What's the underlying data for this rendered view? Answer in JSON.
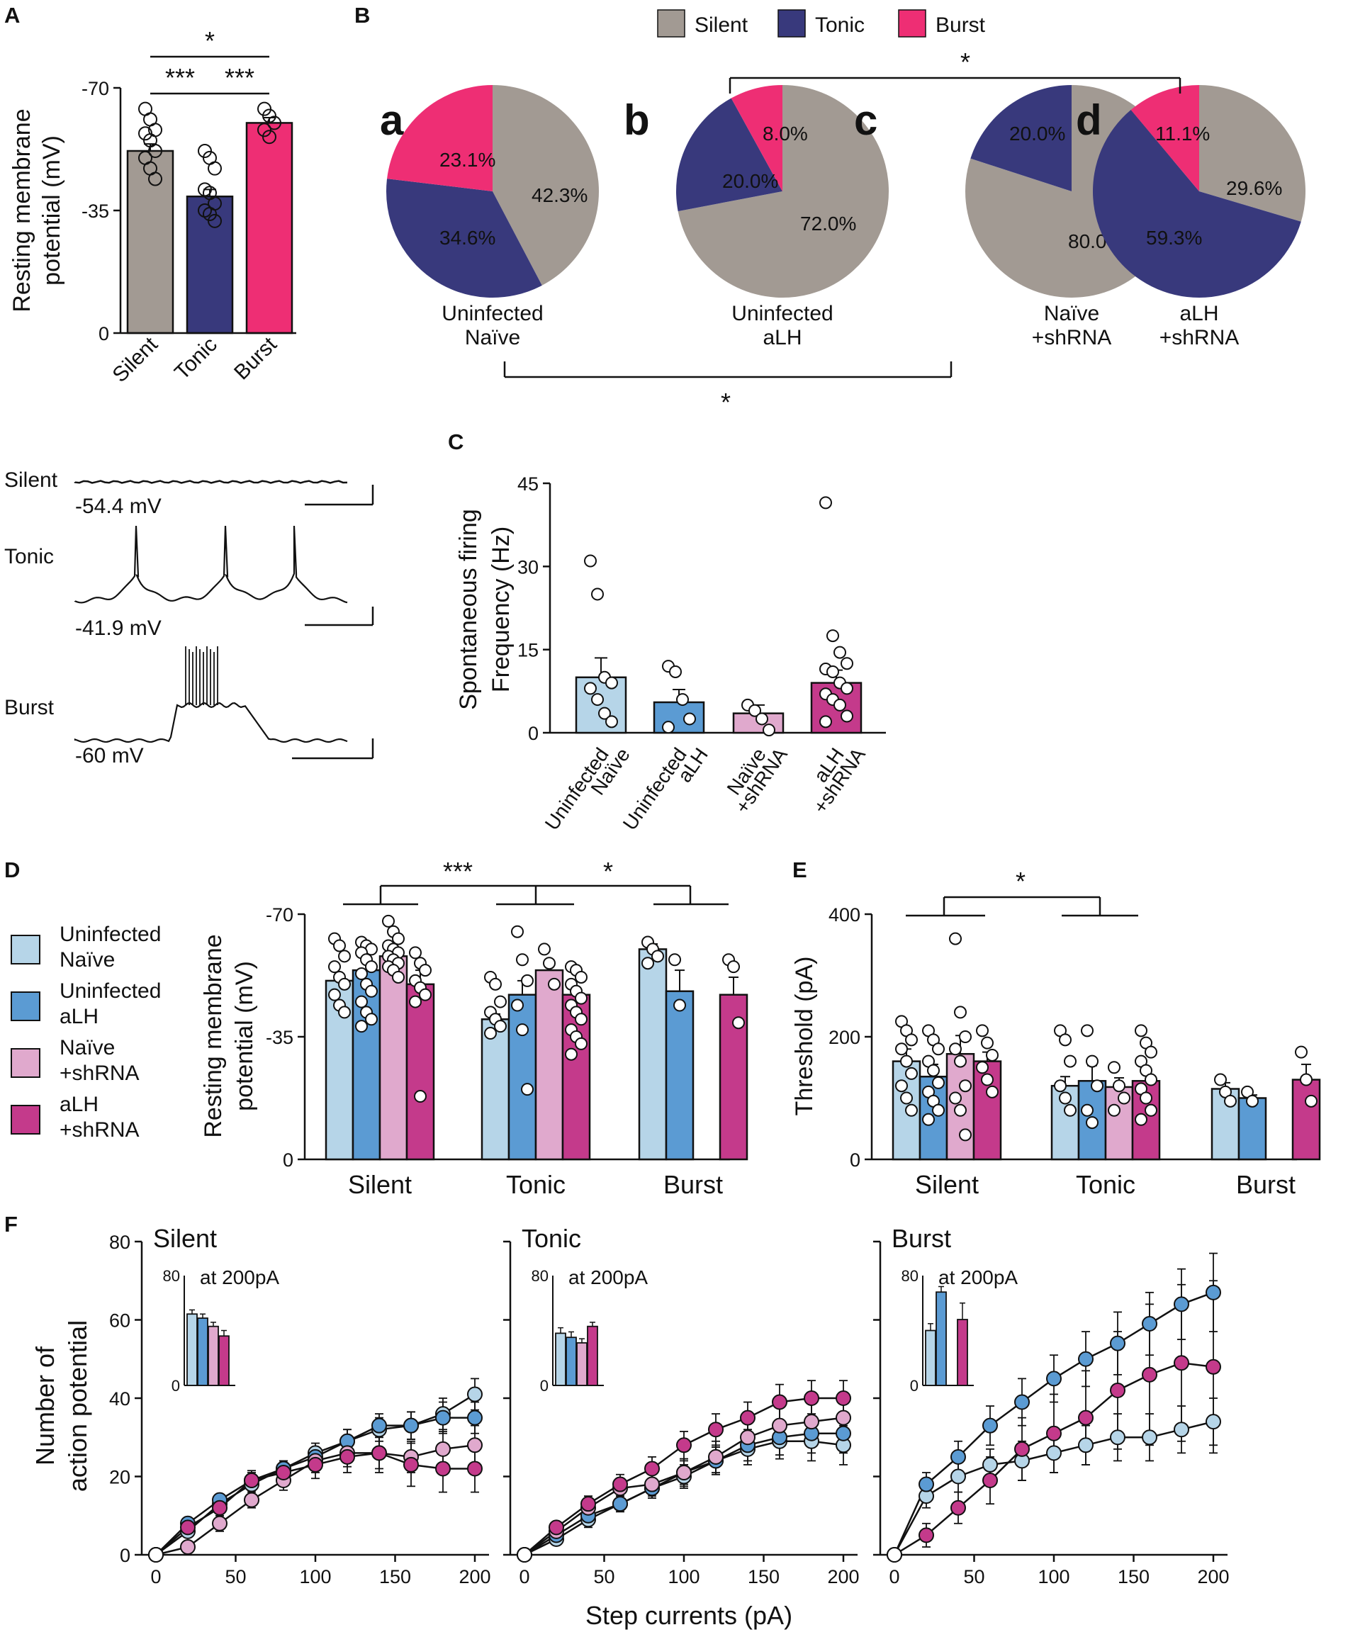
{
  "colors": {
    "silent": "#a29a93",
    "tonic": "#38397c",
    "burst": "#ee2e74",
    "uninfected_naive": "#b6d5e8",
    "uninfected_alh": "#5b9bd3",
    "naive_shrna": "#e0a9cd",
    "alh_shrna": "#c43a8b"
  },
  "legend_top": [
    "Silent",
    "Tonic",
    "Burst"
  ],
  "legend_groups": [
    "Uninfected\nNaïve",
    "Uninfected\naLH",
    "Naïve\n+shRNA",
    "aLH\n+shRNA"
  ],
  "panel_letters": [
    "A",
    "B",
    "C",
    "D",
    "E",
    "F"
  ],
  "traces": {
    "labels": [
      "Silent",
      "Tonic",
      "Burst"
    ],
    "potentials": [
      "-54.4 mV",
      "-41.9 mV",
      "-60 mV"
    ]
  },
  "chart_data": [
    {
      "id": "A",
      "type": "bar",
      "title": "",
      "ylabel": "Resting membrane\npotential (mV)",
      "categories": [
        "Silent",
        "Tonic",
        "Burst"
      ],
      "values": [
        -52,
        -39,
        -60
      ],
      "errors": [
        2,
        2,
        1.5
      ],
      "ylim": [
        0,
        -70
      ],
      "yticks": [
        "-70",
        "-35",
        "0"
      ],
      "points": [
        [
          -64,
          -61,
          -58,
          -57,
          -55,
          -52,
          -50,
          -47,
          -44
        ],
        [
          -52,
          -50,
          -47,
          -41,
          -40,
          -37,
          -35,
          -34,
          -32
        ],
        [
          -64,
          -62,
          -60,
          -58,
          -56
        ]
      ],
      "significance": [
        "*",
        "***",
        "***"
      ]
    },
    {
      "id": "B",
      "type": "pie",
      "panels": [
        {
          "letter": "a",
          "label": "Uninfected\nNaïve",
          "silent": 42.3,
          "tonic": 34.6,
          "burst": 23.1,
          "labels": [
            "42.3%",
            "34.6%",
            "23.1%"
          ]
        },
        {
          "letter": "b",
          "label": "Uninfected\naLH",
          "silent": 72.0,
          "tonic": 20.0,
          "burst": 8.0,
          "labels": [
            "72.0%",
            "20.0%",
            "8.0%"
          ]
        },
        {
          "letter": "c",
          "label": "Naïve\n+shRNA",
          "silent": 80.0,
          "tonic": 20.0,
          "burst": 0,
          "labels": [
            "80.0%",
            "20.0%",
            ""
          ]
        },
        {
          "letter": "d",
          "label": "aLH\n+shRNA",
          "silent": 29.6,
          "tonic": 59.3,
          "burst": 11.1,
          "labels": [
            "29.6%",
            "59.3%",
            "11.1%"
          ]
        }
      ],
      "significance": [
        "*",
        "*"
      ]
    },
    {
      "id": "C",
      "type": "bar",
      "ylabel": "Spontaneous firing\nFrequency (Hz)",
      "categories": [
        "Uninfected\nNaïve",
        "Uninfected\naLH",
        "Naïve\n+shRNA",
        "aLH\n+shRNA"
      ],
      "values": [
        10,
        5.5,
        3.5,
        9
      ],
      "errors": [
        3.5,
        2.3,
        1.5,
        2.3
      ],
      "ylim": [
        0,
        45
      ],
      "yticks": [
        "0",
        "15",
        "30",
        "45"
      ],
      "points": [
        [
          31,
          25,
          10,
          9,
          8,
          6,
          3.5,
          2
        ],
        [
          12,
          11,
          6,
          2.5,
          1
        ],
        [
          5,
          4,
          2.5,
          0.5
        ],
        [
          41.5,
          17.5,
          14.5,
          12.5,
          11.5,
          11,
          9,
          8,
          7,
          6,
          5,
          3,
          2
        ]
      ]
    },
    {
      "id": "D",
      "type": "bar",
      "ylabel": "Resting membrane\npotential (mV)",
      "categories": [
        "Silent",
        "Tonic",
        "Burst"
      ],
      "series": [
        {
          "name": "Uninfected Naïve",
          "values": [
            -51,
            -40,
            -60
          ],
          "errors": [
            2,
            1.5,
            1.5
          ]
        },
        {
          "name": "Uninfected aLH",
          "values": [
            -54,
            -47,
            -48
          ],
          "errors": [
            2,
            4,
            6
          ]
        },
        {
          "name": "Naïve +shRNA",
          "values": [
            -58,
            -54,
            null
          ],
          "errors": [
            1.5,
            3,
            null
          ]
        },
        {
          "name": "aLH +shRNA",
          "values": [
            -50,
            -47,
            -47
          ],
          "errors": [
            4,
            2,
            5
          ]
        }
      ],
      "points": [
        [
          [
            -63,
            -61,
            -58,
            -55,
            -52,
            -50,
            -47,
            -44,
            -42
          ],
          [
            -52,
            -50,
            -45,
            -42,
            -40,
            -38,
            -36
          ],
          [
            -62,
            -60,
            -58,
            -56
          ]
        ],
        [
          [
            -62,
            -61,
            -60,
            -59,
            -57,
            -55,
            -53,
            -50,
            -48,
            -45,
            -42,
            -40,
            -38
          ],
          [
            -65,
            -57,
            -51,
            -44,
            -37,
            -20
          ],
          [
            -57,
            -44
          ]
        ],
        [
          [
            -68,
            -65,
            -63,
            -61,
            -60,
            -59,
            -58,
            -57,
            -56,
            -55,
            -54,
            -52
          ],
          [
            -60,
            -56,
            -50
          ],
          []
        ],
        [
          [
            -59,
            -56,
            -54,
            -51,
            -49,
            -47,
            -45,
            -18
          ],
          [
            -55,
            -54,
            -52,
            -50,
            -48,
            -46,
            -44,
            -42,
            -40,
            -37,
            -35,
            -33,
            -30
          ],
          [
            -57,
            -55,
            -39
          ]
        ]
      ],
      "ylim": [
        0,
        -70
      ],
      "yticks": [
        "-70",
        "-35",
        "0"
      ],
      "significance": [
        "***",
        "*"
      ]
    },
    {
      "id": "E",
      "type": "bar",
      "ylabel": "Threshold (pA)",
      "categories": [
        "Silent",
        "Tonic",
        "Burst"
      ],
      "series": [
        {
          "name": "Uninfected Naïve",
          "values": [
            160,
            120,
            115
          ],
          "errors": [
            20,
            15,
            10
          ]
        },
        {
          "name": "Uninfected aLH",
          "values": [
            135,
            128,
            100
          ],
          "errors": [
            20,
            25,
            5
          ]
        },
        {
          "name": "Naïve +shRNA",
          "values": [
            172,
            118,
            null
          ],
          "errors": [
            30,
            15,
            null
          ]
        },
        {
          "name": "aLH +shRNA",
          "values": [
            160,
            128,
            130
          ],
          "errors": [
            15,
            15,
            25
          ]
        }
      ],
      "points": [
        [
          [
            225,
            210,
            195,
            180,
            160,
            140,
            120,
            100,
            80
          ],
          [
            210,
            195,
            160,
            120,
            100,
            80
          ],
          [
            130,
            110,
            95
          ]
        ],
        [
          [
            210,
            195,
            180,
            160,
            145,
            125,
            110,
            95,
            80,
            65
          ],
          [
            210,
            160,
            120,
            80,
            60
          ],
          [
            110,
            95
          ]
        ],
        [
          [
            360,
            240,
            200,
            180,
            160,
            120,
            100,
            80,
            40
          ],
          [
            150,
            120,
            100,
            80
          ],
          []
        ],
        [
          [
            210,
            190,
            170,
            150,
            130,
            110
          ],
          [
            210,
            190,
            175,
            160,
            145,
            130,
            115,
            100,
            80,
            65
          ],
          [
            175,
            130,
            95
          ]
        ]
      ],
      "ylim": [
        0,
        400
      ],
      "yticks": [
        "0",
        "200",
        "400"
      ],
      "significance": [
        "*"
      ]
    },
    {
      "id": "F",
      "type": "line",
      "xlabel": "Step currents (pA)",
      "ylabel": "Number of\naction potential",
      "x": [
        0,
        20,
        40,
        60,
        80,
        100,
        120,
        140,
        160,
        180,
        200
      ],
      "xticks": [
        "0",
        "50",
        "100",
        "150",
        "200"
      ],
      "yticks": [
        "0",
        "20",
        "40",
        "60",
        "80"
      ],
      "ylim": [
        0,
        80
      ],
      "inset_label": "at 200pA",
      "inset_yticks": [
        "0",
        "80"
      ],
      "panels": [
        {
          "title": "Silent",
          "series": [
            {
              "name": "Uninfected Naïve",
              "values": [
                0,
                6,
                13,
                18,
                22,
                26,
                29,
                32,
                33,
                36,
                41
              ],
              "errors": [
                0,
                1.5,
                1.5,
                2,
                2,
                2.5,
                3,
                3,
                3.5,
                4,
                4
              ]
            },
            {
              "name": "Uninfected aLH",
              "values": [
                0,
                8,
                14,
                19,
                22,
                25,
                29,
                33,
                33,
                35,
                35
              ],
              "errors": [
                0,
                1.5,
                1.5,
                2,
                2,
                2.5,
                3,
                3,
                3.5,
                4,
                4
              ]
            },
            {
              "name": "Naïve +shRNA",
              "values": [
                0,
                2,
                8,
                14,
                19,
                24,
                26,
                26,
                25,
                27,
                28
              ],
              "errors": [
                0,
                1.5,
                2,
                2,
                2.5,
                3,
                3.5,
                4,
                4,
                4.5,
                5
              ]
            },
            {
              "name": "aLH +shRNA",
              "values": [
                0,
                7,
                12,
                19,
                21,
                23,
                25,
                26,
                23,
                22,
                22
              ],
              "errors": [
                0,
                1.5,
                2,
                2.5,
                3,
                3.5,
                4,
                5,
                5.5,
                6,
                6
              ]
            }
          ],
          "inset": [
            52,
            49,
            43,
            36
          ],
          "inset_errors": [
            3,
            3,
            3,
            4
          ]
        },
        {
          "title": "Tonic",
          "series": [
            {
              "name": "Uninfected Naïve",
              "values": [
                0,
                4,
                9,
                13,
                17,
                20,
                24,
                27,
                29,
                29,
                28
              ],
              "errors": [
                0,
                1.5,
                2,
                2,
                2.5,
                3,
                3.5,
                4,
                4.5,
                5,
                5
              ]
            },
            {
              "name": "Uninfected aLH",
              "values": [
                0,
                5,
                10,
                13,
                17,
                21,
                24,
                28,
                30,
                31,
                31
              ],
              "errors": [
                0,
                1.5,
                2,
                2,
                2.5,
                3,
                3.5,
                4,
                4.5,
                5,
                5
              ]
            },
            {
              "name": "Naïve +shRNA",
              "values": [
                0,
                6,
                12,
                17,
                18,
                21,
                25,
                30,
                33,
                34,
                35
              ],
              "errors": [
                0,
                1.5,
                2,
                2.5,
                3,
                3.5,
                4,
                4.5,
                5,
                5,
                5
              ]
            },
            {
              "name": "aLH +shRNA",
              "values": [
                0,
                7,
                13,
                18,
                22,
                28,
                32,
                35,
                39,
                40,
                40
              ],
              "errors": [
                0,
                1.5,
                2,
                2.5,
                3,
                3.5,
                4,
                4,
                4.5,
                4.5,
                4.5
              ]
            }
          ],
          "inset": [
            38,
            35,
            31,
            43
          ],
          "inset_errors": [
            4,
            4,
            3,
            3
          ]
        },
        {
          "title": "Burst",
          "series": [
            {
              "name": "Uninfected Naïve",
              "values": [
                0,
                15,
                20,
                23,
                24,
                26,
                28,
                30,
                30,
                32,
                34
              ],
              "errors": [
                0,
                3,
                4,
                4,
                5,
                5,
                5,
                6,
                6,
                6,
                6
              ]
            },
            {
              "name": "Uninfected aLH",
              "values": [
                0,
                18,
                25,
                33,
                39,
                45,
                50,
                54,
                59,
                64,
                67
              ],
              "errors": [
                0,
                3,
                4,
                5,
                6,
                6,
                7,
                8,
                8,
                9,
                10
              ]
            },
            {
              "name": "Naïve +shRNA",
              "values": [],
              "errors": []
            },
            {
              "name": "aLH +shRNA",
              "values": [
                0,
                5,
                12,
                19,
                27,
                31,
                35,
                42,
                46,
                49,
                48
              ],
              "errors": [
                0,
                3,
                4,
                6,
                8,
                10,
                12,
                15,
                18,
                20,
                22
              ]
            }
          ],
          "inset": [
            40,
            68,
            null,
            48
          ],
          "inset_errors": [
            5,
            4,
            null,
            12
          ]
        }
      ]
    }
  ]
}
